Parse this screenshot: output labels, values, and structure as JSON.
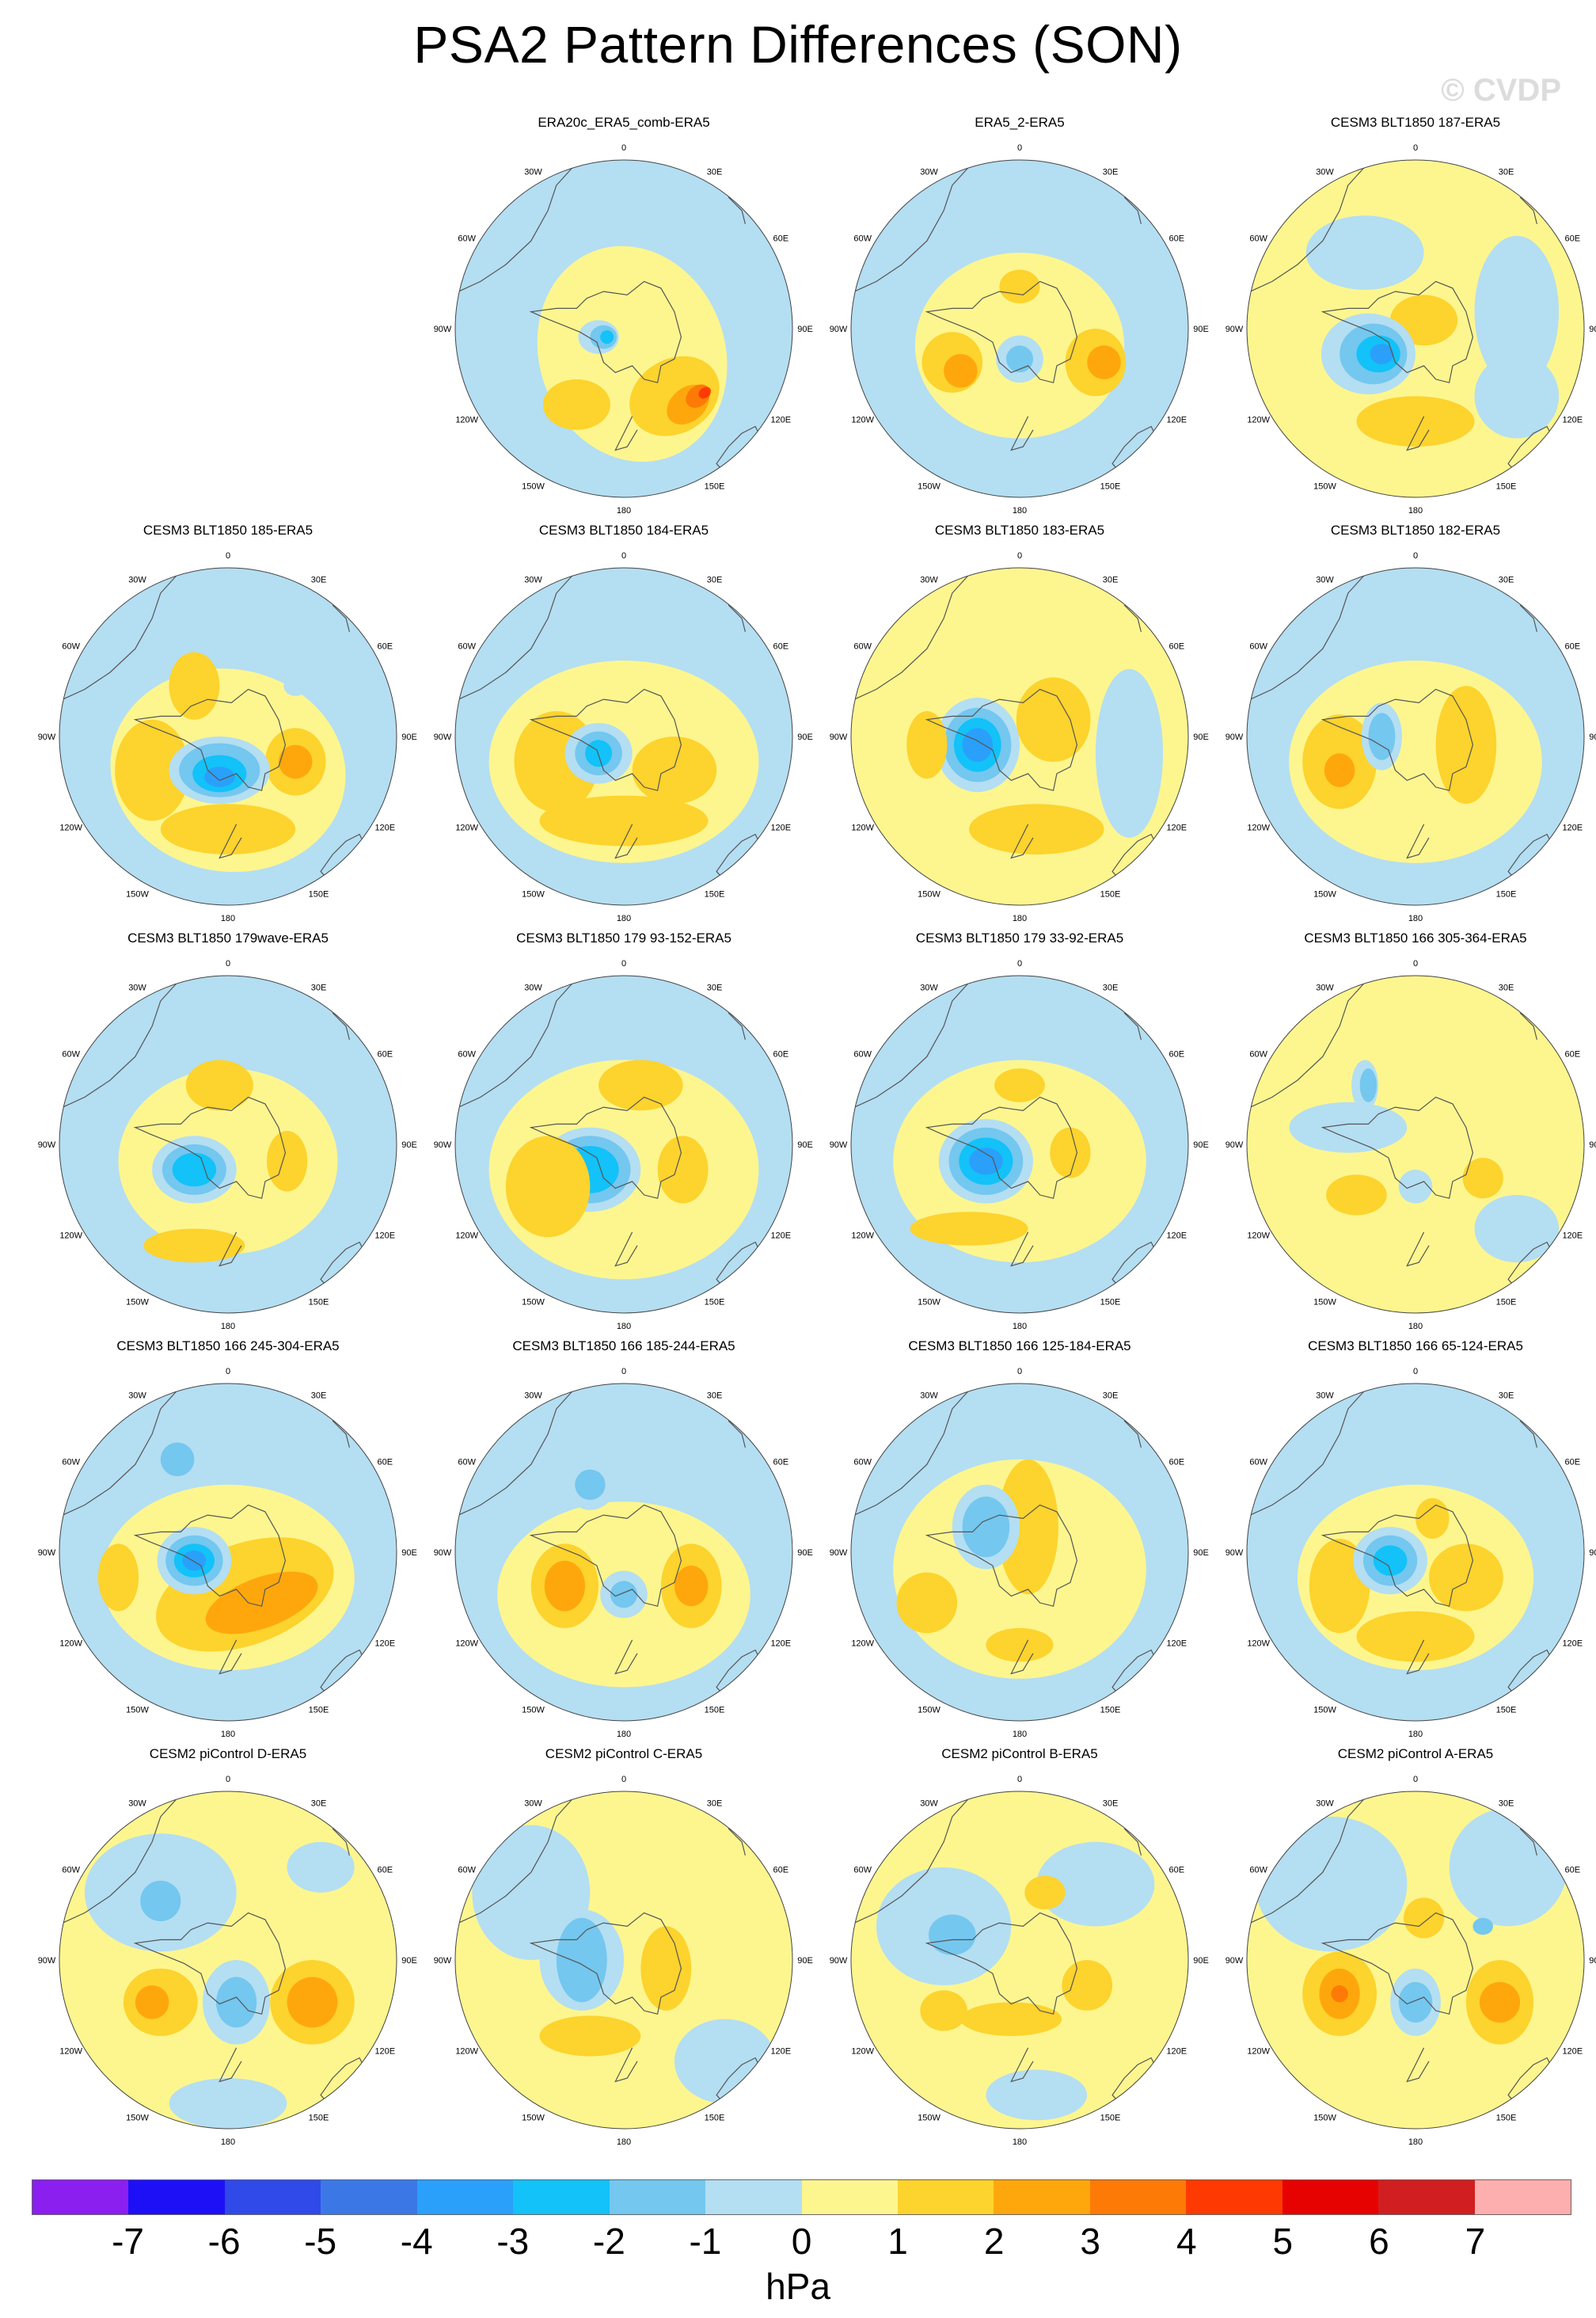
{
  "title": "PSA2 Pattern Differences (SON)",
  "watermark": "© CVDP",
  "palette": {
    "-7": "#8a1ff0",
    "-6": "#1d10f6",
    "-5": "#2f4ae8",
    "-4": "#3b78e6",
    "-3": "#2aa0fa",
    "-2": "#12c2f8",
    "-1": "#74c7ef",
    "0": "#b4def2",
    "1": "#fdf68f",
    "2": "#fdd32d",
    "3": "#fea70c",
    "4": "#fe7a06",
    "5": "#fe3a02",
    "6": "#e70202",
    "7": "#d11e20",
    "8": "#fdafaf"
  },
  "coast_color": "#555555",
  "colorbar": {
    "labels": [
      "-7",
      "-6",
      "-5",
      "-4",
      "-3",
      "-2",
      "-1",
      "0",
      "1",
      "2",
      "3",
      "4",
      "5",
      "6",
      "7"
    ],
    "unit": "hPa"
  },
  "lon_labels": [
    "0",
    "30E",
    "60E",
    "90E",
    "120E",
    "150E",
    "180",
    "150W",
    "120W",
    "90W",
    "60W",
    "30W"
  ],
  "panels": [
    {
      "title": "ERA20c_ERA5_comb-ERA5",
      "background": 0,
      "blobs": [
        [
          0.05,
          0.15,
          0.55,
          0.65,
          -20,
          1
        ],
        [
          0.3,
          0.4,
          0.28,
          0.22,
          -30,
          2
        ],
        [
          -0.28,
          0.45,
          0.2,
          0.15,
          0,
          2
        ],
        [
          0.38,
          0.45,
          0.14,
          0.1,
          -40,
          3
        ],
        [
          0.44,
          0.4,
          0.08,
          0.06,
          -40,
          4
        ],
        [
          0.48,
          0.38,
          0.04,
          0.03,
          -40,
          5
        ],
        [
          -0.15,
          0.05,
          0.12,
          0.1,
          0,
          0
        ],
        [
          -0.12,
          0.05,
          0.08,
          0.07,
          0,
          -1
        ],
        [
          -0.1,
          0.05,
          0.04,
          0.04,
          0,
          -2
        ],
        [
          -0.28,
          -0.48,
          0.05,
          0.04,
          0,
          0
        ]
      ]
    },
    {
      "title": "ERA5_2-ERA5",
      "background": 0,
      "blobs": [
        [
          0.0,
          0.1,
          0.62,
          0.55,
          0,
          1
        ],
        [
          -0.4,
          0.2,
          0.18,
          0.18,
          0,
          2
        ],
        [
          -0.35,
          0.25,
          0.1,
          0.1,
          0,
          3
        ],
        [
          0.45,
          0.2,
          0.18,
          0.2,
          0,
          2
        ],
        [
          0.5,
          0.2,
          0.1,
          0.1,
          0,
          3
        ],
        [
          0.0,
          -0.25,
          0.12,
          0.1,
          0,
          2
        ],
        [
          0.0,
          0.18,
          0.14,
          0.14,
          0,
          0
        ],
        [
          0.0,
          0.18,
          0.08,
          0.08,
          0,
          -1
        ]
      ]
    },
    {
      "title": "CESM3 BLT1850 187-ERA5",
      "background": 1,
      "blobs": [
        [
          -0.3,
          -0.45,
          0.35,
          0.22,
          0,
          0
        ],
        [
          0.6,
          -0.1,
          0.25,
          0.45,
          0,
          0
        ],
        [
          0.6,
          0.4,
          0.25,
          0.25,
          0,
          0
        ],
        [
          0.0,
          0.55,
          0.35,
          0.15,
          0,
          2
        ],
        [
          0.05,
          -0.05,
          0.2,
          0.15,
          0,
          2
        ],
        [
          -0.28,
          0.15,
          0.28,
          0.24,
          0,
          0
        ],
        [
          -0.25,
          0.15,
          0.2,
          0.18,
          0,
          -1
        ],
        [
          -0.22,
          0.15,
          0.13,
          0.11,
          0,
          -2
        ],
        [
          -0.2,
          0.15,
          0.07,
          0.06,
          0,
          -3
        ]
      ]
    },
    {
      "title": "CESM3 BLT1850 185-ERA5",
      "background": 0,
      "blobs": [
        [
          0.0,
          0.2,
          0.7,
          0.6,
          10,
          1
        ],
        [
          -0.45,
          0.2,
          0.22,
          0.3,
          0,
          2
        ],
        [
          0.4,
          0.15,
          0.18,
          0.2,
          0,
          2
        ],
        [
          0.4,
          0.15,
          0.1,
          0.1,
          0,
          3
        ],
        [
          0.0,
          0.55,
          0.4,
          0.15,
          0,
          2
        ],
        [
          -0.05,
          0.2,
          0.3,
          0.2,
          0,
          0
        ],
        [
          -0.05,
          0.2,
          0.24,
          0.16,
          0,
          -1
        ],
        [
          -0.05,
          0.22,
          0.16,
          0.11,
          0,
          -2
        ],
        [
          -0.05,
          0.24,
          0.09,
          0.06,
          0,
          -3
        ],
        [
          -0.2,
          -0.3,
          0.15,
          0.2,
          0,
          2
        ],
        [
          0.4,
          -0.3,
          0.07,
          0.06,
          0,
          0
        ]
      ]
    },
    {
      "title": "CESM3 BLT1850 184-ERA5",
      "background": 0,
      "blobs": [
        [
          0.0,
          0.15,
          0.8,
          0.6,
          0,
          1
        ],
        [
          -0.4,
          0.15,
          0.25,
          0.3,
          0,
          2
        ],
        [
          0.3,
          0.2,
          0.25,
          0.2,
          0,
          2
        ],
        [
          0.0,
          0.5,
          0.5,
          0.15,
          0,
          2
        ],
        [
          -0.15,
          0.1,
          0.2,
          0.18,
          0,
          0
        ],
        [
          -0.15,
          0.1,
          0.14,
          0.13,
          0,
          -1
        ],
        [
          -0.15,
          0.1,
          0.08,
          0.08,
          0,
          -2
        ]
      ]
    },
    {
      "title": "CESM3 BLT1850 183-ERA5",
      "background": 1,
      "blobs": [
        [
          0.65,
          0.1,
          0.2,
          0.5,
          0,
          0
        ],
        [
          -0.25,
          0.05,
          0.25,
          0.28,
          0,
          0
        ],
        [
          -0.25,
          0.05,
          0.2,
          0.22,
          0,
          -1
        ],
        [
          -0.25,
          0.05,
          0.14,
          0.16,
          0,
          -2
        ],
        [
          -0.25,
          0.05,
          0.09,
          0.1,
          0,
          -3
        ],
        [
          -0.55,
          0.05,
          0.12,
          0.2,
          0,
          2
        ],
        [
          0.2,
          -0.1,
          0.22,
          0.25,
          0,
          2
        ],
        [
          0.1,
          0.55,
          0.4,
          0.15,
          0,
          2
        ]
      ]
    },
    {
      "title": "CESM3 BLT1850 182-ERA5",
      "background": 0,
      "blobs": [
        [
          0.0,
          0.15,
          0.75,
          0.6,
          0,
          1
        ],
        [
          -0.45,
          0.15,
          0.22,
          0.28,
          0,
          2
        ],
        [
          -0.45,
          0.2,
          0.09,
          0.1,
          0,
          3
        ],
        [
          0.3,
          0.05,
          0.18,
          0.35,
          0,
          2
        ],
        [
          -0.2,
          0.0,
          0.12,
          0.2,
          0,
          0
        ],
        [
          -0.2,
          0.0,
          0.08,
          0.14,
          0,
          -1
        ]
      ]
    },
    {
      "title": "CESM3 BLT1850 179wave-ERA5",
      "background": 0,
      "blobs": [
        [
          0.0,
          0.1,
          0.65,
          0.55,
          0,
          1
        ],
        [
          -0.2,
          0.15,
          0.25,
          0.2,
          0,
          0
        ],
        [
          -0.2,
          0.15,
          0.19,
          0.15,
          0,
          -1
        ],
        [
          -0.2,
          0.15,
          0.13,
          0.1,
          0,
          -2
        ],
        [
          0.35,
          0.1,
          0.12,
          0.18,
          0,
          2
        ],
        [
          -0.05,
          -0.35,
          0.2,
          0.15,
          0,
          2
        ],
        [
          -0.2,
          0.6,
          0.3,
          0.1,
          0,
          2
        ]
      ]
    },
    {
      "title": "CESM3 BLT1850 179 93-152-ERA5",
      "background": 0,
      "blobs": [
        [
          0.0,
          0.15,
          0.8,
          0.65,
          0,
          1
        ],
        [
          -0.2,
          0.15,
          0.3,
          0.25,
          0,
          0
        ],
        [
          -0.2,
          0.15,
          0.24,
          0.2,
          0,
          -1
        ],
        [
          -0.2,
          0.15,
          0.17,
          0.14,
          0,
          -2
        ],
        [
          -0.45,
          0.25,
          0.25,
          0.3,
          0,
          2
        ],
        [
          0.35,
          0.15,
          0.15,
          0.2,
          0,
          2
        ],
        [
          0.1,
          -0.35,
          0.25,
          0.15,
          0,
          2
        ]
      ]
    },
    {
      "title": "CESM3 BLT1850 179 33-92-ERA5",
      "background": 0,
      "blobs": [
        [
          0.0,
          0.1,
          0.75,
          0.6,
          0,
          1
        ],
        [
          -0.2,
          0.1,
          0.28,
          0.25,
          0,
          0
        ],
        [
          -0.2,
          0.1,
          0.22,
          0.2,
          0,
          -1
        ],
        [
          -0.2,
          0.1,
          0.16,
          0.14,
          0,
          -2
        ],
        [
          -0.2,
          0.1,
          0.1,
          0.08,
          0,
          -3
        ],
        [
          0.3,
          0.05,
          0.12,
          0.15,
          0,
          2
        ],
        [
          -0.3,
          0.5,
          0.35,
          0.1,
          0,
          2
        ],
        [
          0.0,
          -0.35,
          0.15,
          0.1,
          0,
          2
        ]
      ]
    },
    {
      "title": "CESM3 BLT1850 166 305-364-ERA5",
      "background": 1,
      "blobs": [
        [
          -0.4,
          -0.1,
          0.35,
          0.15,
          0,
          0
        ],
        [
          -0.3,
          -0.35,
          0.08,
          0.15,
          0,
          0
        ],
        [
          -0.28,
          -0.35,
          0.05,
          0.1,
          0,
          -1
        ],
        [
          -0.35,
          0.3,
          0.18,
          0.12,
          0,
          2
        ],
        [
          0.4,
          0.2,
          0.12,
          0.12,
          0,
          2
        ],
        [
          0.0,
          0.25,
          0.1,
          0.1,
          0,
          0
        ],
        [
          0.6,
          0.5,
          0.25,
          0.2,
          0,
          0
        ]
      ]
    },
    {
      "title": "CESM3 BLT1850 166 245-304-ERA5",
      "background": 0,
      "blobs": [
        [
          0.0,
          0.15,
          0.75,
          0.55,
          0,
          1
        ],
        [
          -0.3,
          -0.55,
          0.15,
          0.15,
          0,
          0
        ],
        [
          -0.3,
          -0.55,
          0.1,
          0.1,
          0,
          -1
        ],
        [
          0.1,
          0.25,
          0.55,
          0.3,
          -20,
          2
        ],
        [
          0.2,
          0.3,
          0.35,
          0.15,
          -20,
          3
        ],
        [
          -0.65,
          0.15,
          0.12,
          0.2,
          0,
          2
        ],
        [
          -0.2,
          0.05,
          0.22,
          0.2,
          0,
          0
        ],
        [
          -0.2,
          0.05,
          0.17,
          0.15,
          0,
          -1
        ],
        [
          -0.2,
          0.05,
          0.12,
          0.1,
          0,
          -2
        ],
        [
          -0.2,
          0.05,
          0.07,
          0.06,
          0,
          -3
        ]
      ]
    },
    {
      "title": "CESM3 BLT1850 166 185-244-ERA5",
      "background": 0,
      "blobs": [
        [
          0.0,
          0.25,
          0.75,
          0.55,
          0,
          1
        ],
        [
          -0.35,
          0.2,
          0.2,
          0.25,
          0,
          2
        ],
        [
          -0.35,
          0.2,
          0.12,
          0.15,
          0,
          3
        ],
        [
          0.4,
          0.2,
          0.18,
          0.25,
          0,
          2
        ],
        [
          0.4,
          0.2,
          0.1,
          0.12,
          0,
          3
        ],
        [
          -0.2,
          -0.4,
          0.15,
          0.15,
          0,
          0
        ],
        [
          -0.2,
          -0.4,
          0.09,
          0.09,
          0,
          -1
        ],
        [
          0.0,
          0.25,
          0.14,
          0.14,
          0,
          0
        ],
        [
          0.0,
          0.25,
          0.08,
          0.08,
          0,
          -1
        ]
      ]
    },
    {
      "title": "CESM3 BLT1850 166 125-184-ERA5",
      "background": 0,
      "blobs": [
        [
          0.0,
          0.1,
          0.75,
          0.65,
          0,
          1
        ],
        [
          0.05,
          -0.15,
          0.18,
          0.4,
          0,
          2
        ],
        [
          -0.55,
          0.3,
          0.18,
          0.18,
          0,
          2
        ],
        [
          -0.2,
          -0.15,
          0.2,
          0.25,
          0,
          0
        ],
        [
          -0.2,
          -0.15,
          0.14,
          0.18,
          0,
          -1
        ],
        [
          0.0,
          0.55,
          0.2,
          0.1,
          0,
          2
        ]
      ]
    },
    {
      "title": "CESM3 BLT1850 166 65-124-ERA5",
      "background": 0,
      "blobs": [
        [
          0.0,
          0.15,
          0.7,
          0.55,
          0,
          1
        ],
        [
          -0.45,
          0.2,
          0.18,
          0.28,
          0,
          2
        ],
        [
          0.3,
          0.15,
          0.22,
          0.2,
          0,
          2
        ],
        [
          0.0,
          0.5,
          0.35,
          0.15,
          0,
          2
        ],
        [
          -0.15,
          0.05,
          0.22,
          0.2,
          0,
          0
        ],
        [
          -0.15,
          0.05,
          0.16,
          0.15,
          0,
          -1
        ],
        [
          -0.15,
          0.05,
          0.1,
          0.09,
          0,
          -2
        ],
        [
          0.1,
          -0.2,
          0.1,
          0.12,
          0,
          2
        ]
      ]
    },
    {
      "title": "CESM2 piControl D-ERA5",
      "background": 1,
      "blobs": [
        [
          -0.4,
          -0.4,
          0.45,
          0.35,
          0,
          0
        ],
        [
          -0.4,
          -0.35,
          0.12,
          0.12,
          0,
          -1
        ],
        [
          0.55,
          -0.55,
          0.2,
          0.15,
          0,
          0
        ],
        [
          -0.4,
          0.25,
          0.22,
          0.2,
          0,
          2
        ],
        [
          -0.45,
          0.25,
          0.1,
          0.1,
          0,
          3
        ],
        [
          0.5,
          0.25,
          0.25,
          0.25,
          0,
          2
        ],
        [
          0.5,
          0.25,
          0.15,
          0.15,
          0,
          3
        ],
        [
          0.05,
          0.25,
          0.2,
          0.25,
          0,
          0
        ],
        [
          0.05,
          0.25,
          0.12,
          0.15,
          0,
          -1
        ],
        [
          0.0,
          0.85,
          0.35,
          0.15,
          0,
          0
        ]
      ]
    },
    {
      "title": "CESM2 piControl C-ERA5",
      "background": 1,
      "blobs": [
        [
          -0.55,
          -0.4,
          0.35,
          0.4,
          0,
          0
        ],
        [
          -0.25,
          0.0,
          0.25,
          0.3,
          0,
          0
        ],
        [
          -0.25,
          0.0,
          0.15,
          0.25,
          0,
          -1
        ],
        [
          0.25,
          0.05,
          0.15,
          0.25,
          0,
          2
        ],
        [
          -0.2,
          0.45,
          0.3,
          0.12,
          0,
          2
        ],
        [
          0.6,
          0.6,
          0.3,
          0.25,
          0,
          0
        ]
      ]
    },
    {
      "title": "CESM2 piControl B-ERA5",
      "background": 1,
      "blobs": [
        [
          -0.45,
          -0.2,
          0.4,
          0.35,
          0,
          0
        ],
        [
          -0.4,
          -0.15,
          0.14,
          0.12,
          0,
          -1
        ],
        [
          0.45,
          -0.45,
          0.35,
          0.25,
          0,
          0
        ],
        [
          0.15,
          -0.4,
          0.12,
          0.1,
          0,
          2
        ],
        [
          -0.45,
          0.3,
          0.14,
          0.12,
          0,
          2
        ],
        [
          0.4,
          0.15,
          0.15,
          0.15,
          0,
          2
        ],
        [
          -0.05,
          0.35,
          0.3,
          0.1,
          0,
          2
        ],
        [
          0.1,
          0.8,
          0.3,
          0.15,
          0,
          0
        ]
      ]
    },
    {
      "title": "CESM2 piControl A-ERA5",
      "background": 1,
      "blobs": [
        [
          -0.5,
          -0.45,
          0.45,
          0.4,
          0,
          0
        ],
        [
          0.55,
          -0.55,
          0.35,
          0.35,
          0,
          0
        ],
        [
          -0.45,
          0.2,
          0.22,
          0.25,
          0,
          2
        ],
        [
          -0.45,
          0.2,
          0.12,
          0.15,
          0,
          3
        ],
        [
          -0.45,
          0.2,
          0.05,
          0.05,
          0,
          4
        ],
        [
          0.5,
          0.25,
          0.2,
          0.25,
          0,
          2
        ],
        [
          0.5,
          0.25,
          0.12,
          0.12,
          0,
          3
        ],
        [
          0.0,
          0.25,
          0.15,
          0.2,
          0,
          0
        ],
        [
          0.0,
          0.25,
          0.1,
          0.12,
          0,
          -1
        ],
        [
          0.05,
          -0.25,
          0.12,
          0.12,
          0,
          2
        ],
        [
          0.4,
          -0.2,
          0.06,
          0.05,
          0,
          -1
        ]
      ]
    }
  ]
}
